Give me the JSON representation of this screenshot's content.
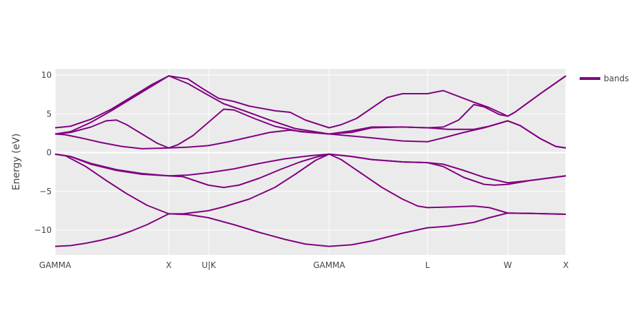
{
  "chart_data": {
    "type": "line",
    "title": "",
    "xlabel": "",
    "ylabel": "Energy (eV)",
    "ylim": [
      -13.2,
      10.8
    ],
    "xlim": [
      0,
      1
    ],
    "grid": true,
    "legend_position": "top-right",
    "line_color": "#800080",
    "plot_background": "#ebebeb",
    "x_ticks": [
      {
        "pos": 0.0,
        "label": "GAMMA"
      },
      {
        "pos": 0.2225,
        "label": "X"
      },
      {
        "pos": 0.3009,
        "label": "U|K"
      },
      {
        "pos": 0.5365,
        "label": "GAMMA"
      },
      {
        "pos": 0.7291,
        "label": "L"
      },
      {
        "pos": 0.8863,
        "label": "W"
      },
      {
        "pos": 1.0,
        "label": "X"
      }
    ],
    "y_ticks": [
      {
        "value": 10,
        "label": "10"
      },
      {
        "value": 5,
        "label": "5"
      },
      {
        "value": 0,
        "label": "0"
      },
      {
        "value": -5,
        "label": "−5"
      },
      {
        "value": -10,
        "label": "−10"
      }
    ],
    "series": [
      {
        "name": "bands",
        "show_in_legend": true,
        "points": [
          [
            0.0,
            -12.1
          ],
          [
            0.03,
            -12.0
          ],
          [
            0.06,
            -11.7
          ],
          [
            0.09,
            -11.3
          ],
          [
            0.12,
            -10.8
          ],
          [
            0.15,
            -10.1
          ],
          [
            0.18,
            -9.3
          ],
          [
            0.2225,
            -7.9
          ],
          [
            0.26,
            -8.0
          ],
          [
            0.3,
            -8.4
          ],
          [
            0.35,
            -9.3
          ],
          [
            0.4,
            -10.3
          ],
          [
            0.45,
            -11.2
          ],
          [
            0.49,
            -11.8
          ],
          [
            0.5365,
            -12.1
          ],
          [
            0.58,
            -11.9
          ],
          [
            0.62,
            -11.4
          ],
          [
            0.68,
            -10.4
          ],
          [
            0.7291,
            -9.7
          ],
          [
            0.77,
            -9.5
          ],
          [
            0.82,
            -9.0
          ],
          [
            0.85,
            -8.4
          ],
          [
            0.8863,
            -7.8
          ],
          [
            0.93,
            -7.85
          ],
          [
            1.0,
            -7.95
          ]
        ]
      },
      {
        "name": "bands",
        "show_in_legend": false,
        "points": [
          [
            0.0,
            -0.2
          ],
          [
            0.02,
            -0.4
          ],
          [
            0.06,
            -1.8
          ],
          [
            0.1,
            -3.6
          ],
          [
            0.14,
            -5.3
          ],
          [
            0.18,
            -6.8
          ],
          [
            0.2225,
            -7.9
          ],
          [
            0.25,
            -7.9
          ],
          [
            0.3,
            -7.5
          ],
          [
            0.33,
            -7.0
          ],
          [
            0.38,
            -6.0
          ],
          [
            0.43,
            -4.5
          ],
          [
            0.47,
            -2.8
          ],
          [
            0.51,
            -1.0
          ],
          [
            0.5365,
            -0.2
          ],
          [
            0.56,
            -0.9
          ],
          [
            0.6,
            -2.7
          ],
          [
            0.64,
            -4.5
          ],
          [
            0.68,
            -6.0
          ],
          [
            0.71,
            -6.9
          ],
          [
            0.7291,
            -7.1
          ],
          [
            0.78,
            -7.0
          ],
          [
            0.82,
            -6.9
          ],
          [
            0.85,
            -7.1
          ],
          [
            0.8863,
            -7.8
          ],
          [
            0.93,
            -7.85
          ],
          [
            1.0,
            -7.95
          ]
        ]
      },
      {
        "name": "bands",
        "show_in_legend": false,
        "points": [
          [
            0.0,
            -0.2
          ],
          [
            0.03,
            -0.5
          ],
          [
            0.07,
            -1.5
          ],
          [
            0.12,
            -2.3
          ],
          [
            0.17,
            -2.8
          ],
          [
            0.2225,
            -3.0
          ],
          [
            0.25,
            -3.1
          ],
          [
            0.3,
            -4.2
          ],
          [
            0.33,
            -4.5
          ],
          [
            0.36,
            -4.2
          ],
          [
            0.4,
            -3.3
          ],
          [
            0.44,
            -2.2
          ],
          [
            0.48,
            -1.2
          ],
          [
            0.51,
            -0.6
          ],
          [
            0.5365,
            -0.2
          ],
          [
            0.58,
            -0.5
          ],
          [
            0.62,
            -0.9
          ],
          [
            0.68,
            -1.2
          ],
          [
            0.7291,
            -1.3
          ],
          [
            0.76,
            -1.8
          ],
          [
            0.8,
            -3.2
          ],
          [
            0.84,
            -4.1
          ],
          [
            0.86,
            -4.2
          ],
          [
            0.8863,
            -4.1
          ],
          [
            0.93,
            -3.6
          ],
          [
            1.0,
            -3.0
          ]
        ]
      },
      {
        "name": "bands",
        "show_in_legend": false,
        "points": [
          [
            0.0,
            -0.2
          ],
          [
            0.03,
            -0.5
          ],
          [
            0.07,
            -1.4
          ],
          [
            0.12,
            -2.2
          ],
          [
            0.17,
            -2.7
          ],
          [
            0.2225,
            -3.0
          ],
          [
            0.26,
            -2.9
          ],
          [
            0.3,
            -2.6
          ],
          [
            0.35,
            -2.1
          ],
          [
            0.4,
            -1.4
          ],
          [
            0.45,
            -0.8
          ],
          [
            0.5,
            -0.4
          ],
          [
            0.5365,
            -0.2
          ],
          [
            0.58,
            -0.5
          ],
          [
            0.62,
            -0.9
          ],
          [
            0.68,
            -1.2
          ],
          [
            0.7291,
            -1.3
          ],
          [
            0.76,
            -1.5
          ],
          [
            0.8,
            -2.3
          ],
          [
            0.84,
            -3.2
          ],
          [
            0.8863,
            -3.9
          ],
          [
            0.93,
            -3.6
          ],
          [
            1.0,
            -3.0
          ]
        ]
      },
      {
        "name": "bands",
        "show_in_legend": false,
        "points": [
          [
            0.0,
            2.4
          ],
          [
            0.02,
            2.3
          ],
          [
            0.05,
            1.9
          ],
          [
            0.09,
            1.3
          ],
          [
            0.13,
            0.8
          ],
          [
            0.17,
            0.5
          ],
          [
            0.2225,
            0.6
          ],
          [
            0.26,
            0.7
          ],
          [
            0.3,
            0.9
          ],
          [
            0.34,
            1.4
          ],
          [
            0.38,
            2.0
          ],
          [
            0.42,
            2.6
          ],
          [
            0.46,
            2.9
          ],
          [
            0.5,
            2.6
          ],
          [
            0.5365,
            2.4
          ],
          [
            0.57,
            2.2
          ],
          [
            0.62,
            1.9
          ],
          [
            0.68,
            1.5
          ],
          [
            0.7291,
            1.4
          ],
          [
            0.76,
            1.9
          ],
          [
            0.8,
            2.6
          ],
          [
            0.84,
            3.2
          ],
          [
            0.8863,
            4.1
          ],
          [
            0.91,
            3.5
          ],
          [
            0.95,
            1.8
          ],
          [
            0.98,
            0.8
          ],
          [
            1.0,
            0.6
          ]
        ]
      },
      {
        "name": "bands",
        "show_in_legend": false,
        "points": [
          [
            0.0,
            2.4
          ],
          [
            0.03,
            2.6
          ],
          [
            0.07,
            3.3
          ],
          [
            0.1,
            4.1
          ],
          [
            0.12,
            4.2
          ],
          [
            0.14,
            3.6
          ],
          [
            0.17,
            2.4
          ],
          [
            0.2,
            1.2
          ],
          [
            0.2225,
            0.6
          ],
          [
            0.24,
            1.0
          ],
          [
            0.27,
            2.2
          ],
          [
            0.3,
            3.9
          ],
          [
            0.33,
            5.6
          ],
          [
            0.35,
            5.5
          ],
          [
            0.39,
            4.4
          ],
          [
            0.43,
            3.4
          ],
          [
            0.48,
            2.7
          ],
          [
            0.5365,
            2.4
          ],
          [
            0.58,
            2.6
          ],
          [
            0.62,
            3.2
          ],
          [
            0.68,
            3.3
          ],
          [
            0.7291,
            3.2
          ],
          [
            0.76,
            3.3
          ],
          [
            0.79,
            4.2
          ],
          [
            0.82,
            6.2
          ],
          [
            0.84,
            5.9
          ],
          [
            0.87,
            4.9
          ],
          [
            0.8863,
            4.7
          ],
          [
            0.9,
            5.2
          ],
          [
            0.95,
            7.6
          ],
          [
            1.0,
            9.9
          ]
        ]
      },
      {
        "name": "bands",
        "show_in_legend": false,
        "points": [
          [
            0.0,
            3.2
          ],
          [
            0.03,
            3.4
          ],
          [
            0.07,
            4.3
          ],
          [
            0.11,
            5.6
          ],
          [
            0.15,
            7.2
          ],
          [
            0.19,
            8.8
          ],
          [
            0.2225,
            9.9
          ],
          [
            0.26,
            9.5
          ],
          [
            0.29,
            8.2
          ],
          [
            0.32,
            7.0
          ],
          [
            0.35,
            6.6
          ],
          [
            0.38,
            6.0
          ],
          [
            0.43,
            5.4
          ],
          [
            0.46,
            5.2
          ],
          [
            0.49,
            4.2
          ],
          [
            0.5365,
            3.2
          ],
          [
            0.56,
            3.6
          ],
          [
            0.59,
            4.4
          ],
          [
            0.63,
            6.2
          ],
          [
            0.65,
            7.1
          ],
          [
            0.68,
            7.6
          ],
          [
            0.7291,
            7.6
          ],
          [
            0.76,
            8.0
          ],
          [
            0.78,
            7.5
          ],
          [
            0.82,
            6.5
          ],
          [
            0.85,
            5.8
          ],
          [
            0.8863,
            4.7
          ],
          [
            0.9,
            5.2
          ],
          [
            0.95,
            7.6
          ],
          [
            1.0,
            9.9
          ]
        ]
      },
      {
        "name": "bands",
        "show_in_legend": false,
        "points": [
          [
            0.0,
            2.4
          ],
          [
            0.03,
            2.7
          ],
          [
            0.07,
            3.9
          ],
          [
            0.11,
            5.4
          ],
          [
            0.15,
            7.0
          ],
          [
            0.19,
            8.6
          ],
          [
            0.2225,
            9.9
          ],
          [
            0.26,
            8.9
          ],
          [
            0.3,
            7.4
          ],
          [
            0.33,
            6.3
          ],
          [
            0.37,
            5.4
          ],
          [
            0.42,
            4.2
          ],
          [
            0.47,
            3.1
          ],
          [
            0.5365,
            2.4
          ],
          [
            0.58,
            2.8
          ],
          [
            0.62,
            3.3
          ],
          [
            0.68,
            3.3
          ],
          [
            0.7291,
            3.2
          ],
          [
            0.77,
            3.0
          ],
          [
            0.82,
            3.0
          ],
          [
            0.85,
            3.4
          ],
          [
            0.8863,
            4.1
          ],
          [
            0.91,
            3.5
          ],
          [
            0.95,
            1.8
          ],
          [
            0.98,
            0.8
          ],
          [
            1.0,
            0.6
          ]
        ]
      }
    ]
  }
}
